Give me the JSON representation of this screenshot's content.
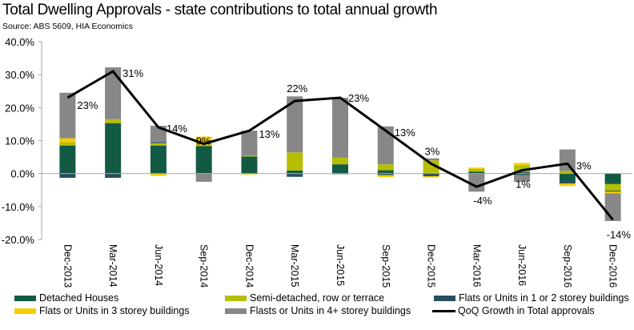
{
  "chart_data": {
    "type": "bar",
    "subtype": "stacked-bar-with-line",
    "title": "Total Dwelling Approvals - state contributions to total annual growth",
    "subtitle": "Source: ABS 5609, HIA Economics",
    "xlabel": "",
    "ylabel": "",
    "ylim": [
      -20,
      40
    ],
    "yticks": [
      -20,
      -10,
      0,
      10,
      20,
      30,
      40
    ],
    "ytick_labels": [
      "-20.0%",
      "-10.0%",
      "0.0%",
      "10.0%",
      "20.0%",
      "30.0%",
      "40.0%"
    ],
    "grid": false,
    "legend_position": "bottom",
    "categories": [
      "Dec-2013",
      "Mar-2014",
      "Jun-2014",
      "Sep-2014",
      "Dec-2014",
      "Mar-2015",
      "Jun-2015",
      "Sep-2015",
      "Dec-2015",
      "Mar-2016",
      "Jun-2016",
      "Sep-2016",
      "Dec-2016"
    ],
    "series": [
      {
        "name": "Detached Houses",
        "type": "bar",
        "color": "#135a45",
        "values": [
          8.5,
          15.3,
          8.5,
          8.3,
          5.2,
          0.9,
          2.8,
          1.0,
          0.2,
          0.6,
          0.5,
          -2.5,
          -3.2
        ]
      },
      {
        "name": "Semi-detached, row or terrace",
        "type": "bar",
        "color": "#b5be00",
        "values": [
          1.0,
          1.2,
          0.7,
          0.4,
          0.3,
          5.5,
          2.0,
          1.8,
          3.8,
          0.8,
          2.0,
          0.8,
          -2.0
        ]
      },
      {
        "name": "Flats or Units in 1 or 2 storey buildings",
        "type": "bar",
        "color": "#284f5f",
        "values": [
          -1.3,
          -1.3,
          0.3,
          0.0,
          0.0,
          -1.0,
          -0.2,
          -0.5,
          -0.8,
          0.0,
          -0.5,
          -0.5,
          -0.3
        ]
      },
      {
        "name": "Flats or Units in 3 storey buildings",
        "type": "bar",
        "color": "#f5cd00",
        "values": [
          1.2,
          0.0,
          -0.7,
          2.5,
          -0.3,
          0.0,
          0.0,
          -0.6,
          -0.4,
          0.4,
          0.7,
          -0.8,
          -0.5
        ]
      },
      {
        "name": "Flasts or Units in 4+ storey buildings",
        "type": "bar",
        "color": "#878787",
        "values": [
          13.8,
          15.7,
          5.0,
          -2.5,
          7.5,
          17.0,
          18.2,
          11.5,
          0.6,
          -5.5,
          -2.0,
          6.5,
          -8.4
        ]
      },
      {
        "name": "QoQ Growth in Total approvals",
        "type": "line",
        "color": "#000000",
        "values": [
          23,
          31,
          14,
          9,
          13,
          22,
          23,
          13,
          3,
          -4,
          1,
          3,
          -14
        ],
        "data_labels": [
          "23%",
          "31%",
          "14%",
          "9%",
          "13%",
          "22%",
          "23%",
          "13%",
          "3%",
          "-4%",
          "1%",
          "3%",
          "-14%"
        ]
      }
    ]
  },
  "legend": [
    {
      "label": "Detached Houses",
      "color": "#135a45",
      "kind": "bar"
    },
    {
      "label": "Semi-detached, row or terrace",
      "color": "#b5be00",
      "kind": "bar"
    },
    {
      "label": "Flats or Units in 1 or 2 storey buildings",
      "color": "#284f5f",
      "kind": "bar"
    },
    {
      "label": "Flats or Units in 3 storey buildings",
      "color": "#f5cd00",
      "kind": "bar"
    },
    {
      "label": "Flasts or Units in 4+ storey buildings",
      "color": "#878787",
      "kind": "bar"
    },
    {
      "label": "QoQ Growth in Total approvals",
      "color": "#000000",
      "kind": "line"
    }
  ]
}
